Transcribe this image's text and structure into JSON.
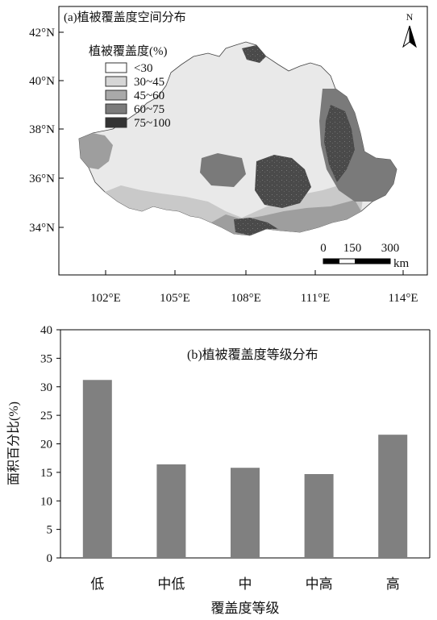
{
  "chart_data": [
    {
      "type": "map",
      "title": "(a)植被覆盖度空间分布",
      "legend": {
        "title": "植被覆盖度(%)",
        "placement": "top-left",
        "items": [
          {
            "label": "<30",
            "color": "#ffffff"
          },
          {
            "label": "30~45",
            "color": "#d6d6d6"
          },
          {
            "label": "45~60",
            "color": "#a9a9a9"
          },
          {
            "label": "60~75",
            "color": "#7b7b7b"
          },
          {
            "label": "75~100",
            "color": "#333333"
          }
        ]
      },
      "x_ticks": [
        "102°E",
        "105°E",
        "108°E",
        "111°E",
        "114°E"
      ],
      "y_ticks": [
        "42°N",
        "40°N",
        "38°N",
        "36°N",
        "34°N"
      ],
      "north_label": "N",
      "scalebar": {
        "ticks": [
          "0",
          "150",
          "300"
        ],
        "unit": "km"
      }
    },
    {
      "type": "bar",
      "title": "(b)植被覆盖度等级分布",
      "categories": [
        "低",
        "中低",
        "中",
        "中高",
        "高"
      ],
      "values": [
        31.2,
        16.4,
        15.8,
        14.7,
        21.6
      ],
      "xlabel": "覆盖度等级",
      "ylabel": "面积百分比(%)",
      "ylim": [
        0,
        40
      ],
      "yticks": [
        0,
        5,
        10,
        15,
        20,
        25,
        30,
        35,
        40
      ],
      "bar_color": "#808080",
      "grid": false
    }
  ]
}
